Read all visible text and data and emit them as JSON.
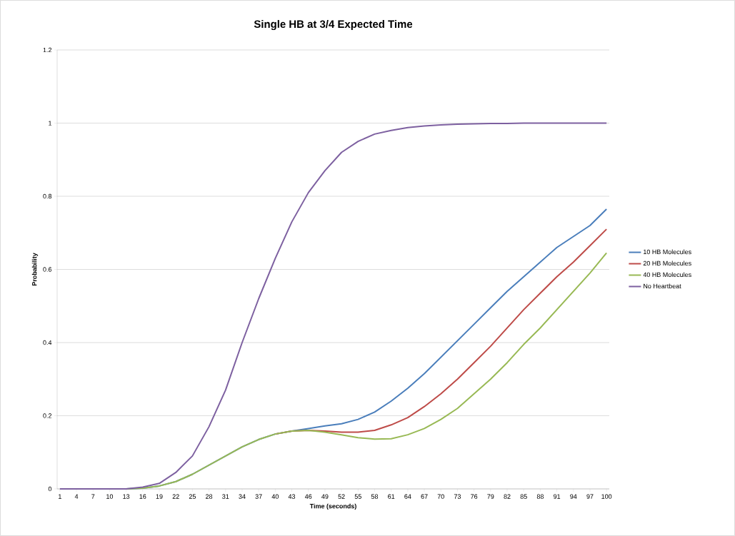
{
  "chart_data": {
    "type": "line",
    "title": "Single HB at 3/4 Expected Time",
    "xlabel": "Time (seconds)",
    "ylabel": "Probability",
    "x": [
      1,
      4,
      7,
      10,
      13,
      16,
      19,
      22,
      25,
      28,
      31,
      34,
      37,
      40,
      43,
      46,
      49,
      52,
      55,
      58,
      61,
      64,
      67,
      70,
      73,
      76,
      79,
      82,
      85,
      88,
      91,
      94,
      97,
      100
    ],
    "xlim": [
      0.5,
      100.5
    ],
    "xticks": [
      1,
      4,
      7,
      10,
      13,
      16,
      19,
      22,
      25,
      28,
      31,
      34,
      37,
      40,
      43,
      46,
      49,
      52,
      55,
      58,
      61,
      64,
      67,
      70,
      73,
      76,
      79,
      82,
      85,
      88,
      91,
      94,
      97,
      100
    ],
    "ylim": [
      0,
      1.2
    ],
    "yticks": [
      0,
      0.2,
      0.4,
      0.6,
      0.8,
      1,
      1.2
    ],
    "grid": "y",
    "legend": "right",
    "marker": "none",
    "line_style": "solid",
    "series": [
      {
        "name": "10 HB Molecules",
        "color": "#4a7ebb",
        "values": [
          null,
          null,
          null,
          0,
          0,
          0.002,
          0.008,
          0.02,
          0.04,
          0.065,
          0.09,
          0.115,
          0.135,
          0.15,
          0.158,
          0.165,
          0.172,
          0.178,
          0.19,
          0.21,
          0.24,
          0.275,
          0.315,
          0.36,
          0.405,
          0.45,
          0.495,
          0.54,
          0.58,
          0.62,
          0.66,
          0.69,
          0.72,
          0.765
        ]
      },
      {
        "name": "20 HB Molecules",
        "color": "#be4b48",
        "values": [
          null,
          null,
          null,
          null,
          null,
          null,
          null,
          null,
          null,
          null,
          null,
          null,
          null,
          0.15,
          0.158,
          0.16,
          0.158,
          0.155,
          0.155,
          0.16,
          0.175,
          0.195,
          0.225,
          0.26,
          0.3,
          0.345,
          0.39,
          0.44,
          0.49,
          0.535,
          0.58,
          0.62,
          0.665,
          0.71
        ]
      },
      {
        "name": "40 HB Molecules",
        "color": "#98b954",
        "values": [
          null,
          null,
          null,
          0,
          0,
          0.002,
          0.008,
          0.02,
          0.04,
          0.065,
          0.09,
          0.115,
          0.135,
          0.15,
          0.158,
          0.16,
          0.155,
          0.148,
          0.14,
          0.136,
          0.137,
          0.148,
          0.165,
          0.19,
          0.22,
          0.26,
          0.3,
          0.345,
          0.395,
          0.44,
          0.49,
          0.54,
          0.59,
          0.645
        ]
      },
      {
        "name": "No Heartbeat",
        "color": "#7d60a0",
        "values": [
          0,
          0,
          0,
          0,
          0,
          0.005,
          0.015,
          0.045,
          0.09,
          0.17,
          0.27,
          0.4,
          0.52,
          0.63,
          0.73,
          0.81,
          0.87,
          0.92,
          0.95,
          0.97,
          0.98,
          0.988,
          0.992,
          0.995,
          0.997,
          0.998,
          0.999,
          0.999,
          1,
          1,
          1,
          1,
          1,
          1
        ]
      }
    ]
  }
}
